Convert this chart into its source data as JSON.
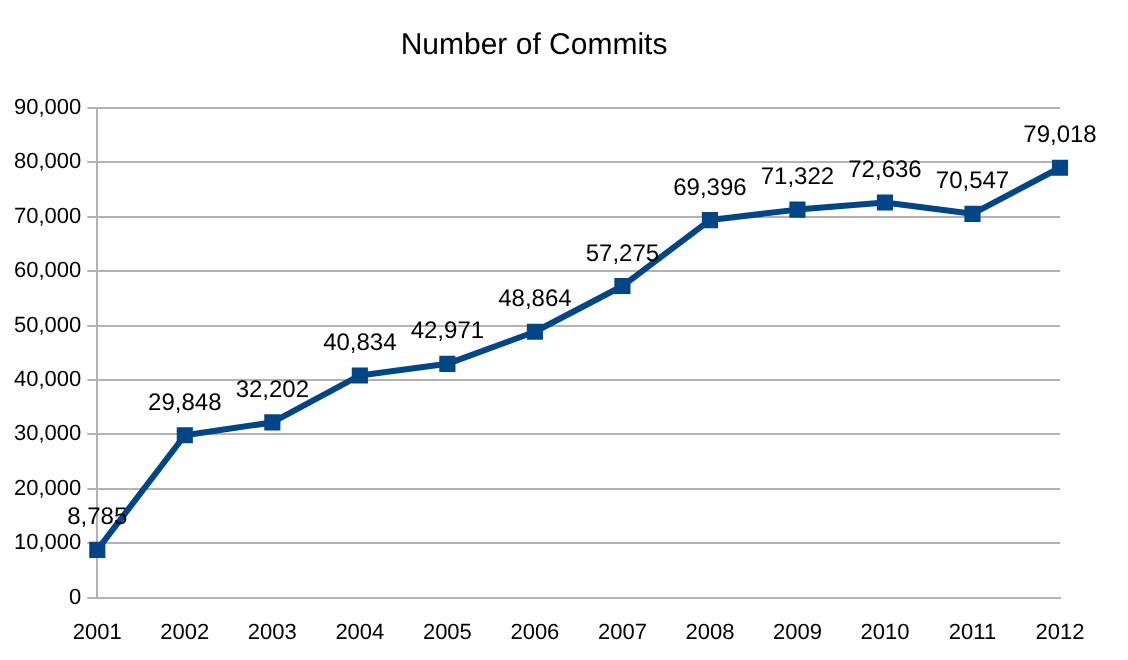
{
  "chart_data": {
    "type": "line",
    "title": "Number of Commits",
    "categories": [
      "2001",
      "2002",
      "2003",
      "2004",
      "2005",
      "2006",
      "2007",
      "2008",
      "2009",
      "2010",
      "2011",
      "2012"
    ],
    "series": [
      {
        "color": "#004586",
        "values": [
          8785,
          29848,
          32202,
          40834,
          42971,
          48864,
          57275,
          69396,
          71322,
          72636,
          70547,
          79018
        ],
        "value_labels": [
          "8,785",
          "29,848",
          "32,202",
          "40,834",
          "42,971",
          "48,864",
          "57,275",
          "69,396",
          "71,322",
          "72,636",
          "70,547",
          "79,018"
        ]
      }
    ],
    "ylim": [
      0,
      90000
    ],
    "yticks": [
      {
        "value": 0,
        "label": "0"
      },
      {
        "value": 10000,
        "label": "10,000"
      },
      {
        "value": 20000,
        "label": "20,000"
      },
      {
        "value": 30000,
        "label": "30,000"
      },
      {
        "value": 40000,
        "label": "40,000"
      },
      {
        "value": 50000,
        "label": "50,000"
      },
      {
        "value": 60000,
        "label": "60,000"
      },
      {
        "value": 70000,
        "label": "70,000"
      },
      {
        "value": 80000,
        "label": "80,000"
      },
      {
        "value": 90000,
        "label": "90,000"
      }
    ],
    "grid": "y",
    "legend": false,
    "marker": "square",
    "line_style": "solid"
  }
}
